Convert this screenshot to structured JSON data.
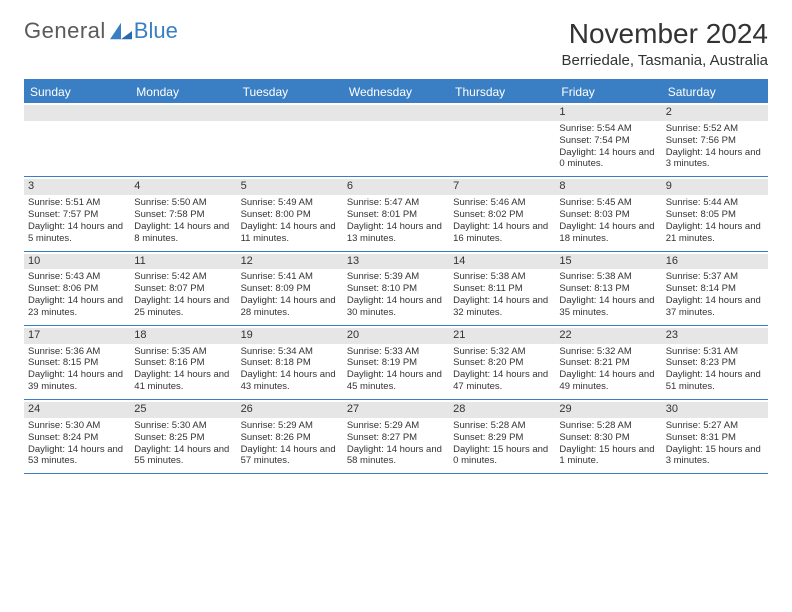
{
  "brand": {
    "general": "General",
    "blue": "Blue"
  },
  "title": "November 2024",
  "subtitle": "Berriedale, Tasmania, Australia",
  "colors": {
    "accent": "#3a7fc4",
    "header_bg": "#3a7fc4",
    "daynum_bg": "#e6e6e6",
    "text": "#333333"
  },
  "day_names": [
    "Sunday",
    "Monday",
    "Tuesday",
    "Wednesday",
    "Thursday",
    "Friday",
    "Saturday"
  ],
  "weeks": [
    [
      {
        "n": "",
        "lines": []
      },
      {
        "n": "",
        "lines": []
      },
      {
        "n": "",
        "lines": []
      },
      {
        "n": "",
        "lines": []
      },
      {
        "n": "",
        "lines": []
      },
      {
        "n": "1",
        "lines": [
          "Sunrise: 5:54 AM",
          "Sunset: 7:54 PM",
          "Daylight: 14 hours and 0 minutes."
        ]
      },
      {
        "n": "2",
        "lines": [
          "Sunrise: 5:52 AM",
          "Sunset: 7:56 PM",
          "Daylight: 14 hours and 3 minutes."
        ]
      }
    ],
    [
      {
        "n": "3",
        "lines": [
          "Sunrise: 5:51 AM",
          "Sunset: 7:57 PM",
          "Daylight: 14 hours and 5 minutes."
        ]
      },
      {
        "n": "4",
        "lines": [
          "Sunrise: 5:50 AM",
          "Sunset: 7:58 PM",
          "Daylight: 14 hours and 8 minutes."
        ]
      },
      {
        "n": "5",
        "lines": [
          "Sunrise: 5:49 AM",
          "Sunset: 8:00 PM",
          "Daylight: 14 hours and 11 minutes."
        ]
      },
      {
        "n": "6",
        "lines": [
          "Sunrise: 5:47 AM",
          "Sunset: 8:01 PM",
          "Daylight: 14 hours and 13 minutes."
        ]
      },
      {
        "n": "7",
        "lines": [
          "Sunrise: 5:46 AM",
          "Sunset: 8:02 PM",
          "Daylight: 14 hours and 16 minutes."
        ]
      },
      {
        "n": "8",
        "lines": [
          "Sunrise: 5:45 AM",
          "Sunset: 8:03 PM",
          "Daylight: 14 hours and 18 minutes."
        ]
      },
      {
        "n": "9",
        "lines": [
          "Sunrise: 5:44 AM",
          "Sunset: 8:05 PM",
          "Daylight: 14 hours and 21 minutes."
        ]
      }
    ],
    [
      {
        "n": "10",
        "lines": [
          "Sunrise: 5:43 AM",
          "Sunset: 8:06 PM",
          "Daylight: 14 hours and 23 minutes."
        ]
      },
      {
        "n": "11",
        "lines": [
          "Sunrise: 5:42 AM",
          "Sunset: 8:07 PM",
          "Daylight: 14 hours and 25 minutes."
        ]
      },
      {
        "n": "12",
        "lines": [
          "Sunrise: 5:41 AM",
          "Sunset: 8:09 PM",
          "Daylight: 14 hours and 28 minutes."
        ]
      },
      {
        "n": "13",
        "lines": [
          "Sunrise: 5:39 AM",
          "Sunset: 8:10 PM",
          "Daylight: 14 hours and 30 minutes."
        ]
      },
      {
        "n": "14",
        "lines": [
          "Sunrise: 5:38 AM",
          "Sunset: 8:11 PM",
          "Daylight: 14 hours and 32 minutes."
        ]
      },
      {
        "n": "15",
        "lines": [
          "Sunrise: 5:38 AM",
          "Sunset: 8:13 PM",
          "Daylight: 14 hours and 35 minutes."
        ]
      },
      {
        "n": "16",
        "lines": [
          "Sunrise: 5:37 AM",
          "Sunset: 8:14 PM",
          "Daylight: 14 hours and 37 minutes."
        ]
      }
    ],
    [
      {
        "n": "17",
        "lines": [
          "Sunrise: 5:36 AM",
          "Sunset: 8:15 PM",
          "Daylight: 14 hours and 39 minutes."
        ]
      },
      {
        "n": "18",
        "lines": [
          "Sunrise: 5:35 AM",
          "Sunset: 8:16 PM",
          "Daylight: 14 hours and 41 minutes."
        ]
      },
      {
        "n": "19",
        "lines": [
          "Sunrise: 5:34 AM",
          "Sunset: 8:18 PM",
          "Daylight: 14 hours and 43 minutes."
        ]
      },
      {
        "n": "20",
        "lines": [
          "Sunrise: 5:33 AM",
          "Sunset: 8:19 PM",
          "Daylight: 14 hours and 45 minutes."
        ]
      },
      {
        "n": "21",
        "lines": [
          "Sunrise: 5:32 AM",
          "Sunset: 8:20 PM",
          "Daylight: 14 hours and 47 minutes."
        ]
      },
      {
        "n": "22",
        "lines": [
          "Sunrise: 5:32 AM",
          "Sunset: 8:21 PM",
          "Daylight: 14 hours and 49 minutes."
        ]
      },
      {
        "n": "23",
        "lines": [
          "Sunrise: 5:31 AM",
          "Sunset: 8:23 PM",
          "Daylight: 14 hours and 51 minutes."
        ]
      }
    ],
    [
      {
        "n": "24",
        "lines": [
          "Sunrise: 5:30 AM",
          "Sunset: 8:24 PM",
          "Daylight: 14 hours and 53 minutes."
        ]
      },
      {
        "n": "25",
        "lines": [
          "Sunrise: 5:30 AM",
          "Sunset: 8:25 PM",
          "Daylight: 14 hours and 55 minutes."
        ]
      },
      {
        "n": "26",
        "lines": [
          "Sunrise: 5:29 AM",
          "Sunset: 8:26 PM",
          "Daylight: 14 hours and 57 minutes."
        ]
      },
      {
        "n": "27",
        "lines": [
          "Sunrise: 5:29 AM",
          "Sunset: 8:27 PM",
          "Daylight: 14 hours and 58 minutes."
        ]
      },
      {
        "n": "28",
        "lines": [
          "Sunrise: 5:28 AM",
          "Sunset: 8:29 PM",
          "Daylight: 15 hours and 0 minutes."
        ]
      },
      {
        "n": "29",
        "lines": [
          "Sunrise: 5:28 AM",
          "Sunset: 8:30 PM",
          "Daylight: 15 hours and 1 minute."
        ]
      },
      {
        "n": "30",
        "lines": [
          "Sunrise: 5:27 AM",
          "Sunset: 8:31 PM",
          "Daylight: 15 hours and 3 minutes."
        ]
      }
    ]
  ]
}
